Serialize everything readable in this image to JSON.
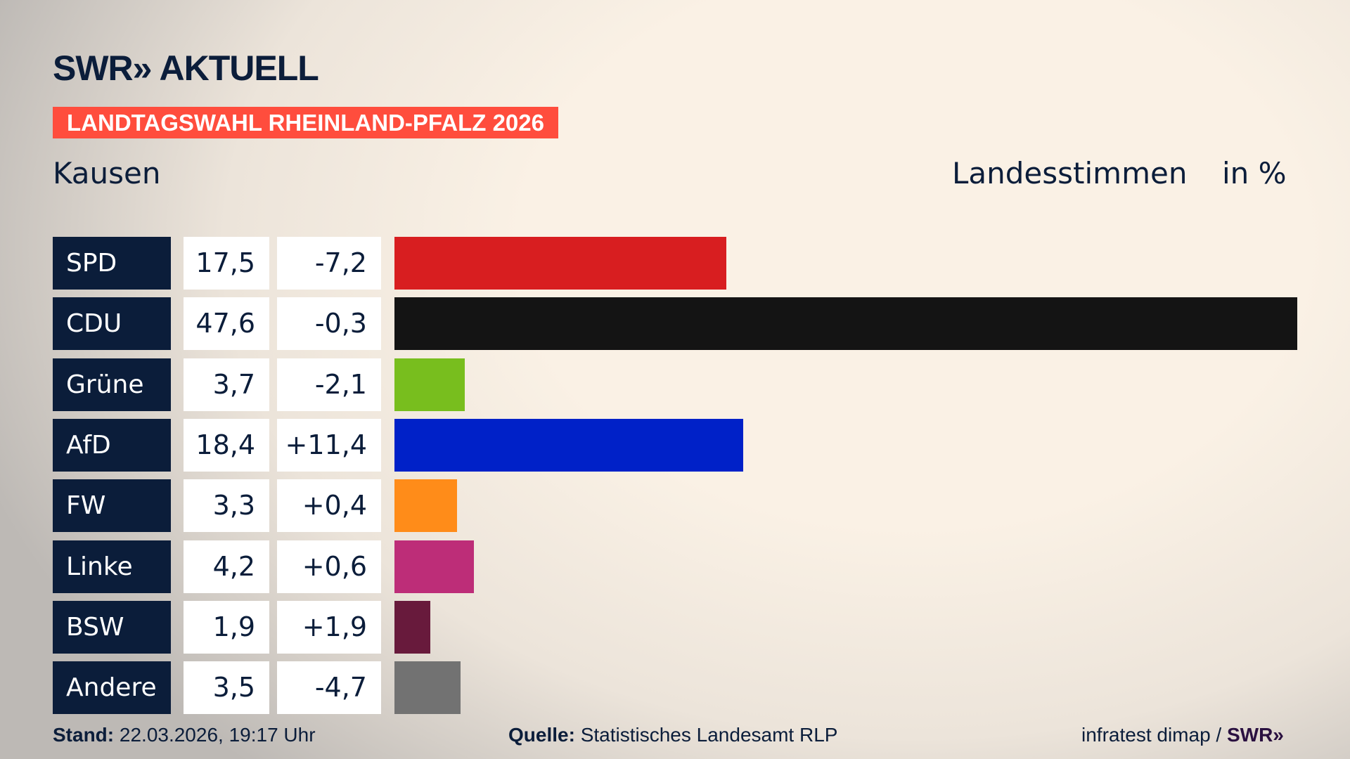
{
  "header": {
    "logo": "SWR» AKTUELL",
    "banner": "LANDTAGSWAHL RHEINLAND-PFALZ 2026",
    "place": "Kausen",
    "metric": "Landesstimmen",
    "unit": "in %"
  },
  "chart_data": {
    "type": "bar",
    "orientation": "horizontal",
    "xlim": [
      0,
      47.6
    ],
    "categories": [
      "SPD",
      "CDU",
      "Grüne",
      "AfD",
      "FW",
      "Linke",
      "BSW",
      "Andere"
    ],
    "values": [
      17.5,
      47.6,
      3.7,
      18.4,
      3.3,
      4.2,
      1.9,
      3.5
    ],
    "values_label": [
      "17,5",
      "47,6",
      "3,7",
      "18,4",
      "3,3",
      "4,2",
      "1,9",
      "3,5"
    ],
    "change_label": [
      "-7,2",
      "-0,3",
      "-2,1",
      "+11,4",
      "+0,4",
      "+0,6",
      "+1,9",
      "-4,7"
    ],
    "colors": [
      "#d81e20",
      "#141414",
      "#78be1e",
      "#0021c8",
      "#ff8c19",
      "#bd2d78",
      "#681a3c",
      "#727272"
    ]
  },
  "footer": {
    "stand_label": "Stand:",
    "stand_value": "22.03.2026, 19:17 Uhr",
    "source_label": "Quelle:",
    "source_value": "Statistisches Landesamt RLP",
    "credit": "infratest dimap /",
    "credit_logo": "SWR»"
  }
}
